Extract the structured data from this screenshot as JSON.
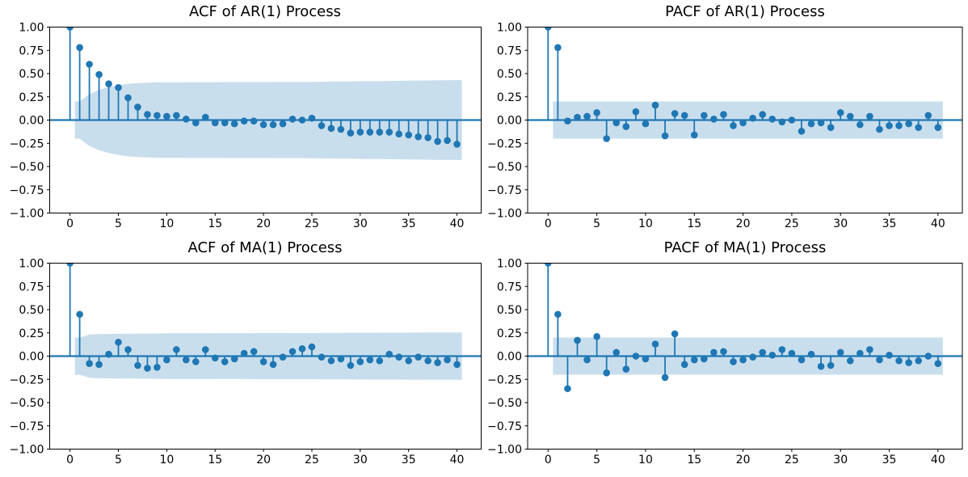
{
  "figure": {
    "background": "#ffffff",
    "accent_color": "#1f77b4",
    "band_opacity": 0.24,
    "spine_color": "#000000",
    "text_color": "#000000"
  },
  "chart_data": [
    {
      "id": "acf-ar1",
      "type": "stem",
      "title": "ACF of AR(1) Process",
      "position": "top-left",
      "xlim": [
        -2.1,
        42.5
      ],
      "ylim": [
        -1.0,
        1.0
      ],
      "xticks": [
        0,
        5,
        10,
        15,
        20,
        25,
        30,
        35,
        40
      ],
      "yticks": [
        1.0,
        0.75,
        0.5,
        0.25,
        0.0,
        -0.25,
        -0.5,
        -0.75,
        -1.0
      ],
      "lag_start": 0,
      "values": [
        1.0,
        0.78,
        0.6,
        0.49,
        0.39,
        0.35,
        0.24,
        0.14,
        0.06,
        0.05,
        0.04,
        0.05,
        0.01,
        -0.03,
        0.03,
        -0.03,
        -0.03,
        -0.04,
        -0.01,
        -0.01,
        -0.05,
        -0.05,
        -0.04,
        0.01,
        0.0,
        0.02,
        -0.06,
        -0.09,
        -0.1,
        -0.14,
        -0.13,
        -0.13,
        -0.13,
        -0.13,
        -0.15,
        -0.16,
        -0.18,
        -0.19,
        -0.23,
        -0.22,
        -0.26
      ],
      "conf_band": {
        "x_start": 0.5,
        "x_end": 40.5,
        "upper": [
          0.2,
          0.28,
          0.325,
          0.355,
          0.375,
          0.39,
          0.398,
          0.403,
          0.406,
          0.407,
          0.407,
          0.408,
          0.408,
          0.408,
          0.408,
          0.409,
          0.409,
          0.409,
          0.409,
          0.409,
          0.41,
          0.41,
          0.41,
          0.41,
          0.411,
          0.412,
          0.413,
          0.415,
          0.416,
          0.418,
          0.419,
          0.42,
          0.421,
          0.422,
          0.424,
          0.425,
          0.426,
          0.428,
          0.429,
          0.43
        ]
      }
    },
    {
      "id": "pacf-ar1",
      "type": "stem",
      "title": "PACF of AR(1) Process",
      "position": "top-right",
      "xlim": [
        -2.1,
        42.5
      ],
      "ylim": [
        -1.0,
        1.0
      ],
      "xticks": [
        0,
        5,
        10,
        15,
        20,
        25,
        30,
        35,
        40
      ],
      "yticks": [
        1.0,
        0.75,
        0.5,
        0.25,
        0.0,
        -0.25,
        -0.5,
        -0.75,
        -1.0
      ],
      "lag_start": 0,
      "values": [
        1.0,
        0.78,
        -0.01,
        0.03,
        0.04,
        0.08,
        -0.2,
        -0.03,
        -0.07,
        0.09,
        -0.04,
        0.16,
        -0.17,
        0.07,
        0.05,
        -0.16,
        0.05,
        0.01,
        0.06,
        -0.06,
        -0.03,
        0.02,
        0.06,
        0.01,
        -0.02,
        0.0,
        -0.12,
        -0.04,
        -0.03,
        -0.08,
        0.08,
        0.04,
        -0.05,
        0.04,
        -0.1,
        -0.06,
        -0.06,
        -0.04,
        -0.08,
        0.05,
        -0.08
      ],
      "conf_band": {
        "x_start": 0.5,
        "x_end": 40.5,
        "upper": 0.2
      }
    },
    {
      "id": "acf-ma1",
      "type": "stem",
      "title": "ACF of MA(1) Process",
      "position": "bottom-left",
      "xlim": [
        -2.1,
        42.5
      ],
      "ylim": [
        -1.0,
        1.0
      ],
      "xticks": [
        0,
        5,
        10,
        15,
        20,
        25,
        30,
        35,
        40
      ],
      "yticks": [
        1.0,
        0.75,
        0.5,
        0.25,
        0.0,
        -0.25,
        -0.5,
        -0.75,
        -1.0
      ],
      "lag_start": 0,
      "values": [
        1.0,
        0.45,
        -0.08,
        -0.09,
        0.02,
        0.15,
        0.07,
        -0.1,
        -0.13,
        -0.12,
        -0.04,
        0.07,
        -0.04,
        -0.06,
        0.07,
        -0.02,
        -0.06,
        -0.03,
        0.03,
        0.05,
        -0.06,
        -0.09,
        -0.01,
        0.05,
        0.08,
        0.1,
        -0.01,
        -0.05,
        -0.03,
        -0.1,
        -0.06,
        -0.04,
        -0.05,
        0.02,
        -0.01,
        -0.05,
        -0.01,
        -0.05,
        -0.07,
        -0.04,
        -0.09
      ],
      "conf_band": {
        "x_start": 0.5,
        "x_end": 40.5,
        "upper": [
          0.2,
          0.232,
          0.238,
          0.239,
          0.24,
          0.242,
          0.243,
          0.243,
          0.244,
          0.245,
          0.245,
          0.246,
          0.246,
          0.246,
          0.247,
          0.247,
          0.247,
          0.247,
          0.248,
          0.248,
          0.248,
          0.248,
          0.249,
          0.249,
          0.249,
          0.25,
          0.25,
          0.25,
          0.251,
          0.251,
          0.251,
          0.252,
          0.252,
          0.252,
          0.253,
          0.253,
          0.254,
          0.254,
          0.254,
          0.255
        ]
      }
    },
    {
      "id": "pacf-ma1",
      "type": "stem",
      "title": "PACF of MA(1) Process",
      "position": "bottom-right",
      "xlim": [
        -2.1,
        42.5
      ],
      "ylim": [
        -1.0,
        1.0
      ],
      "xticks": [
        0,
        5,
        10,
        15,
        20,
        25,
        30,
        35,
        40
      ],
      "yticks": [
        1.0,
        0.75,
        0.5,
        0.25,
        0.0,
        -0.25,
        -0.5,
        -0.75,
        -1.0
      ],
      "lag_start": 0,
      "values": [
        1.0,
        0.45,
        -0.35,
        0.17,
        -0.04,
        0.21,
        -0.18,
        0.04,
        -0.14,
        0.0,
        -0.03,
        0.13,
        -0.23,
        0.24,
        -0.09,
        -0.04,
        -0.03,
        0.04,
        0.05,
        -0.06,
        -0.04,
        -0.01,
        0.04,
        0.01,
        0.07,
        0.03,
        -0.04,
        0.02,
        -0.11,
        -0.1,
        0.04,
        -0.05,
        0.03,
        0.07,
        -0.04,
        0.01,
        -0.05,
        -0.07,
        -0.05,
        0.0,
        -0.08
      ],
      "conf_band": {
        "x_start": 0.5,
        "x_end": 40.5,
        "upper": 0.2
      }
    }
  ]
}
